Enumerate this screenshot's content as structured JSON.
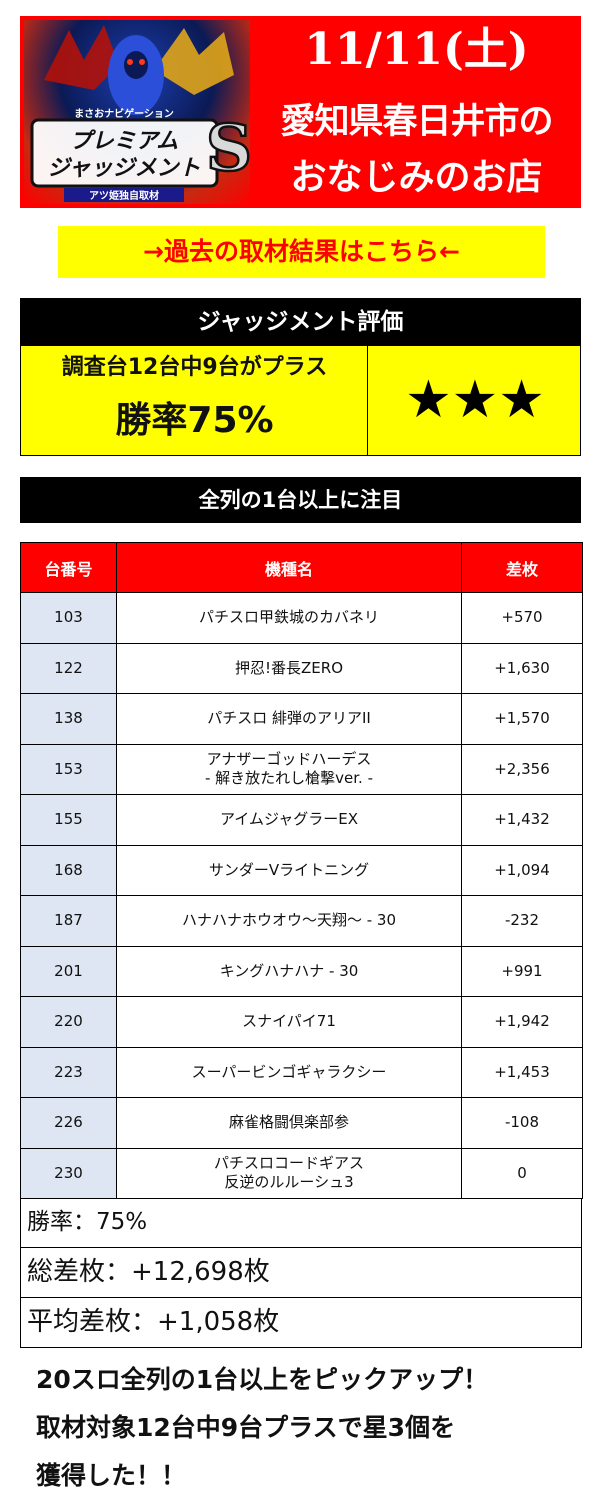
{
  "banner": {
    "logo_small": "まさおナビゲーション",
    "logo_title_1": "プレミアム",
    "logo_title_2": "ジャッジメント",
    "logo_sub": "アツ姫独自取材",
    "date": "11/11(土)",
    "line1": "愛知県春日井市の",
    "line2": "おなじみのお店"
  },
  "past_link": "→過去の取材結果はこちら←",
  "evaluation": {
    "header": "ジャッジメント評価",
    "line1": "調査台12台中9台がプラス",
    "line2": "勝率75%",
    "stars": "★★★"
  },
  "focus_bar": "全列の1台以上に注目",
  "table": {
    "headers": [
      "台番号",
      "機種名",
      "差枚"
    ],
    "rows": [
      {
        "num": "103",
        "name": "パチスロ甲鉄城のカバネリ",
        "diff": "+570"
      },
      {
        "num": "122",
        "name": "押忍!番長ZERO",
        "diff": "+1,630"
      },
      {
        "num": "138",
        "name": "パチスロ 緋弾のアリアII",
        "diff": "+1,570"
      },
      {
        "num": "153",
        "name": "アナザーゴッドハーデス",
        "name2": "- 解き放たれし槍撃ver. -",
        "diff": "+2,356"
      },
      {
        "num": "155",
        "name": "アイムジャグラーEX",
        "diff": "+1,432"
      },
      {
        "num": "168",
        "name": "サンダーVライトニング",
        "diff": "+1,094"
      },
      {
        "num": "187",
        "name": "ハナハナホウオウ～天翔～ - 30",
        "diff": "-232"
      },
      {
        "num": "201",
        "name": "キングハナハナ - 30",
        "diff": "+991"
      },
      {
        "num": "220",
        "name": "スナイパイ71",
        "diff": "+1,942"
      },
      {
        "num": "223",
        "name": "スーパービンゴギャラクシー",
        "diff": "+1,453"
      },
      {
        "num": "226",
        "name": "麻雀格闘倶楽部参",
        "diff": "-108"
      },
      {
        "num": "230",
        "name": "パチスロコードギアス",
        "name2": "反逆のルルーシュ3",
        "diff": "0"
      }
    ]
  },
  "summary": {
    "win_rate": "勝率：75%",
    "total": "総差枚：+12,698枚",
    "average": "平均差枚：+1,058枚"
  },
  "footer": {
    "line1": "20スロ全列の1台以上をピックアップ！",
    "line2": "取材対象12台中9台プラスで星3個を",
    "line3": "獲得した！！"
  },
  "colors": {
    "accent_red": "#ff0000",
    "highlight_yellow": "#ffff00",
    "header_black": "#000000",
    "number_cell": "#dfe6f3"
  }
}
